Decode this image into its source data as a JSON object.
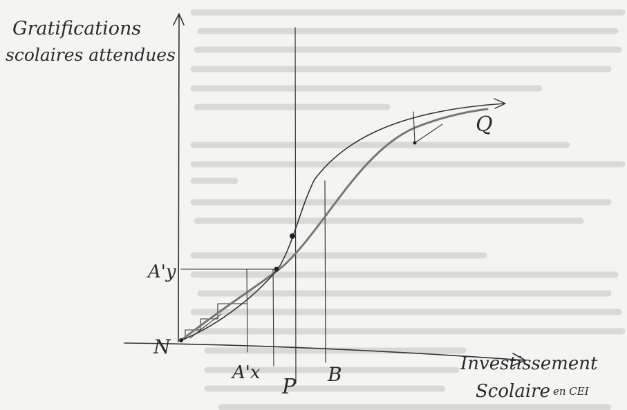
{
  "axes": {
    "y_label": [
      "Gratifications",
      "scolaires attendues"
    ],
    "x_label": [
      "Investissement",
      "Scolaire"
    ],
    "x_unit": "en CEI"
  },
  "points": [
    "N",
    "A'y",
    "A'x",
    "P",
    "B",
    "Q"
  ]
}
